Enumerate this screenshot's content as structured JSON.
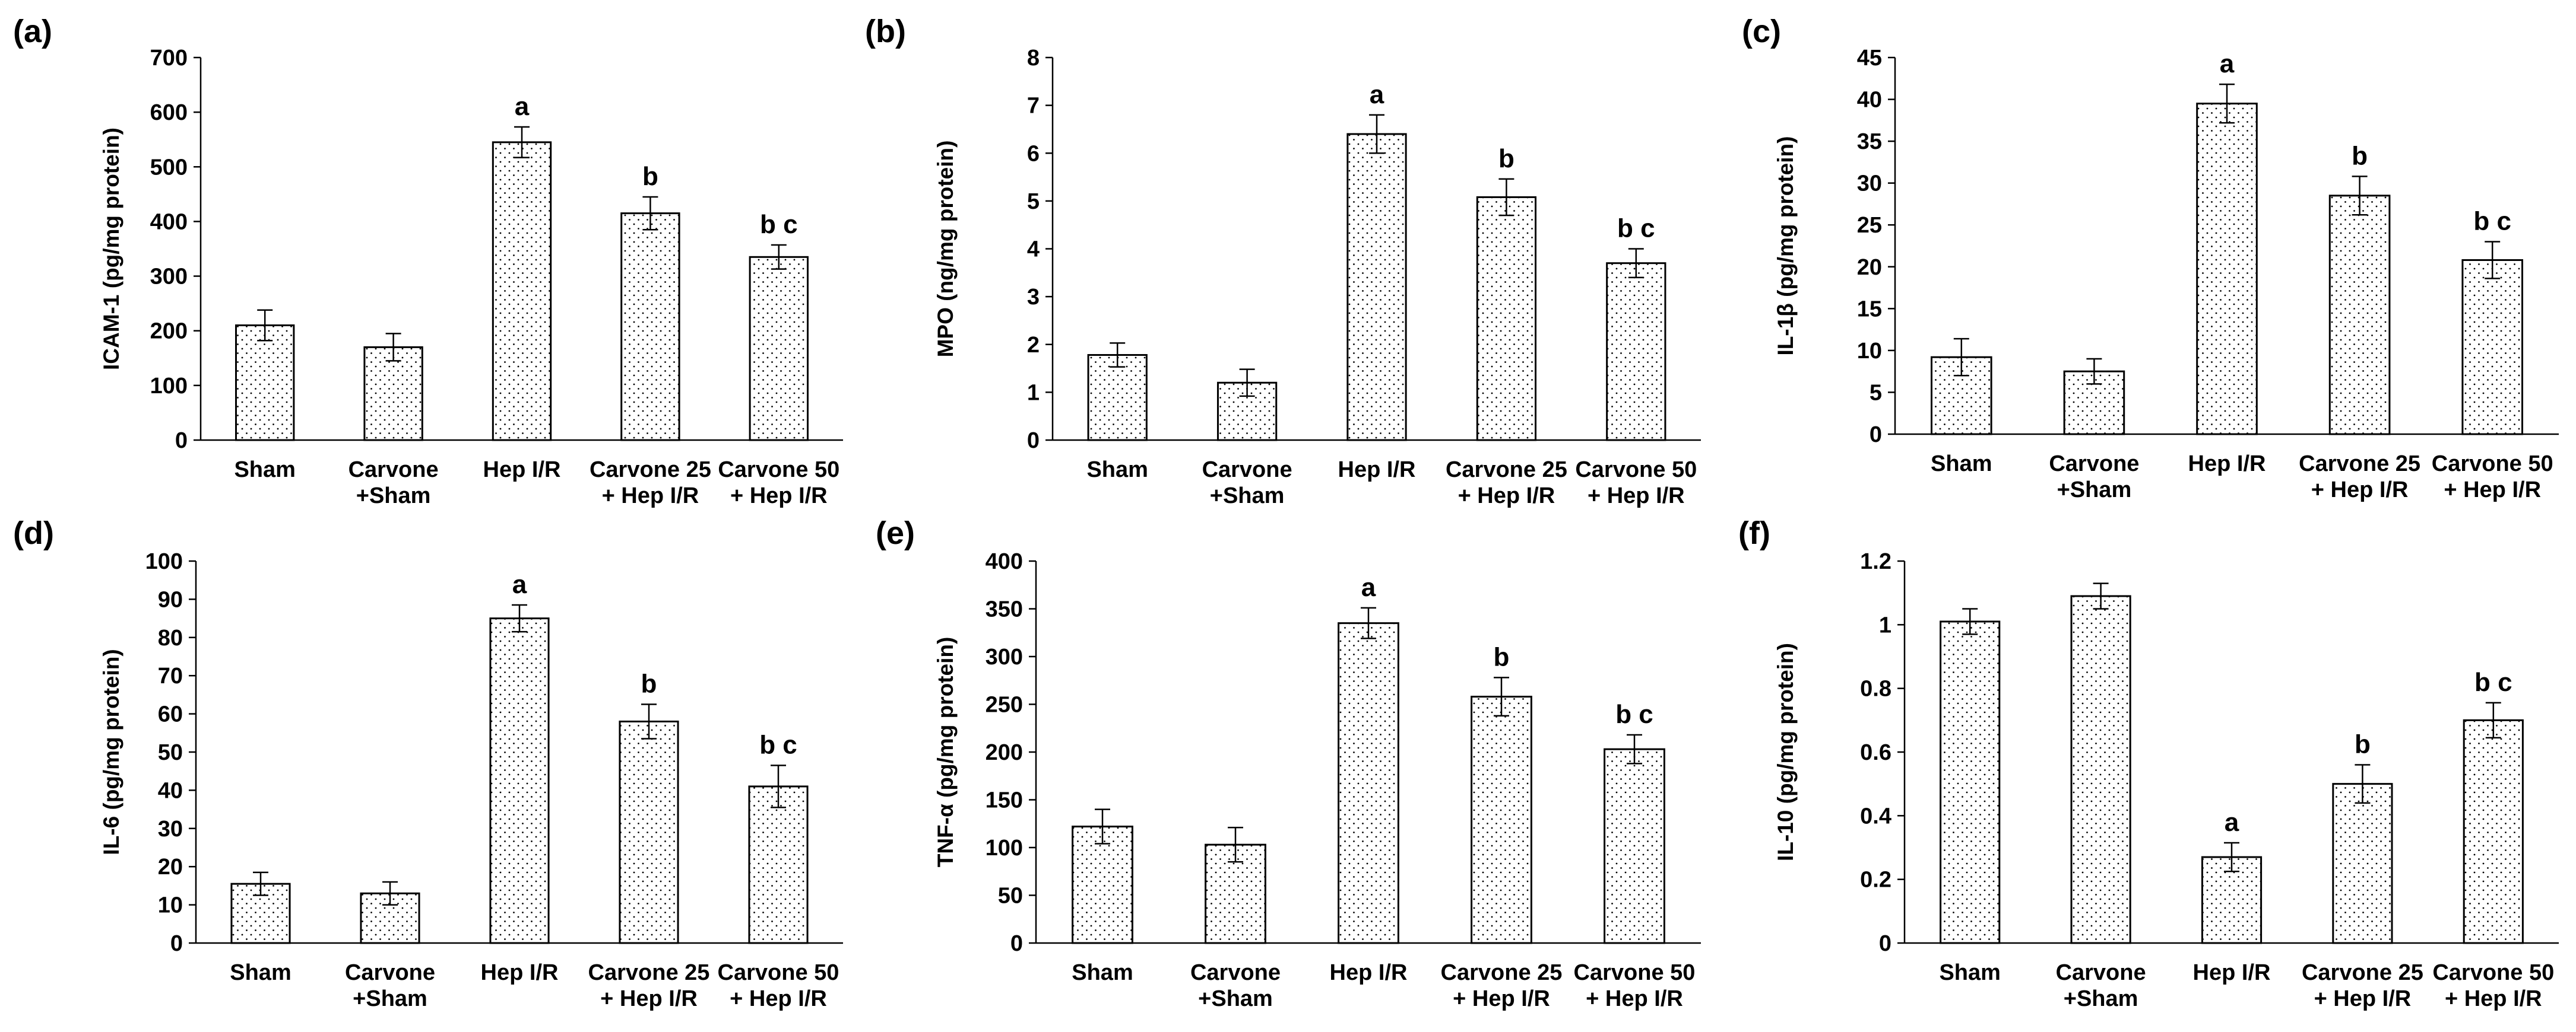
{
  "chart_data": [
    {
      "type": "bar",
      "panel_label": "(a)",
      "ylabel": "ICAM-1 (pg/mg protein)",
      "categories": [
        [
          "Sham"
        ],
        [
          "Carvone",
          "+Sham"
        ],
        [
          "Hep I/R"
        ],
        [
          "Carvone 25",
          "+ Hep I/R"
        ],
        [
          "Carvone 50",
          "+ Hep I/R"
        ]
      ],
      "values": [
        210,
        170,
        545,
        415,
        335
      ],
      "errors": [
        28,
        25,
        28,
        30,
        22
      ],
      "significance": [
        "",
        "",
        "a",
        "b",
        "b c"
      ],
      "ylim": [
        0,
        700
      ],
      "yticks": [
        "0",
        "100",
        "200",
        "300",
        "400",
        "500",
        "600",
        "700"
      ]
    },
    {
      "type": "bar",
      "panel_label": "(b)",
      "ylabel": "MPO (ng/mg protein)",
      "categories": [
        [
          "Sham"
        ],
        [
          "Carvone",
          "+Sham"
        ],
        [
          "Hep I/R"
        ],
        [
          "Carvone 25",
          "+ Hep I/R"
        ],
        [
          "Carvone 50",
          "+ Hep I/R"
        ]
      ],
      "values": [
        1.78,
        1.2,
        6.4,
        5.08,
        3.7
      ],
      "errors": [
        0.25,
        0.28,
        0.4,
        0.38,
        0.3
      ],
      "significance": [
        "",
        "",
        "a",
        "b",
        "b c"
      ],
      "ylim": [
        0,
        8
      ],
      "yticks": [
        "0",
        "1",
        "2",
        "3",
        "4",
        "5",
        "6",
        "7",
        "8"
      ]
    },
    {
      "type": "bar",
      "panel_label": "(c)",
      "ylabel": "IL-1β (pg/mg protein)",
      "categories": [
        [
          "Sham"
        ],
        [
          "Carvone",
          "+Sham"
        ],
        [
          "Hep I/R"
        ],
        [
          "Carvone 25",
          "+ Hep I/R"
        ],
        [
          "Carvone 50",
          "+ Hep I/R"
        ]
      ],
      "values": [
        9.2,
        7.5,
        39.5,
        28.5,
        20.8
      ],
      "errors": [
        2.2,
        1.5,
        2.3,
        2.3,
        2.2
      ],
      "significance": [
        "",
        "",
        "a",
        "b",
        "b c"
      ],
      "ylim": [
        0,
        45
      ],
      "yticks": [
        "0",
        "5",
        "10",
        "15",
        "20",
        "25",
        "30",
        "35",
        "40",
        "45"
      ]
    },
    {
      "type": "bar",
      "panel_label": "(d)",
      "ylabel": "IL-6 (pg/mg protein)",
      "categories": [
        [
          "Sham"
        ],
        [
          "Carvone",
          "+Sham"
        ],
        [
          "Hep I/R"
        ],
        [
          "Carvone 25",
          "+ Hep I/R"
        ],
        [
          "Carvone 50",
          "+ Hep I/R"
        ]
      ],
      "values": [
        15.5,
        13,
        85,
        58,
        41
      ],
      "errors": [
        3,
        3,
        3.5,
        4.5,
        5.5
      ],
      "significance": [
        "",
        "",
        "a",
        "b",
        "b c"
      ],
      "ylim": [
        0,
        100
      ],
      "yticks": [
        "0",
        "10",
        "20",
        "30",
        "40",
        "50",
        "60",
        "70",
        "80",
        "90",
        "100"
      ]
    },
    {
      "type": "bar",
      "panel_label": "(e)",
      "ylabel": "TNF-α (pg/mg protein)",
      "categories": [
        [
          "Sham"
        ],
        [
          "Carvone",
          "+Sham"
        ],
        [
          "Hep I/R"
        ],
        [
          "Carvone 25",
          "+ Hep I/R"
        ],
        [
          "Carvone 50",
          "+ Hep I/R"
        ]
      ],
      "values": [
        122,
        103,
        335,
        258,
        203
      ],
      "errors": [
        18,
        18,
        16,
        20,
        15
      ],
      "significance": [
        "",
        "",
        "a",
        "b",
        "b c"
      ],
      "ylim": [
        0,
        400
      ],
      "yticks": [
        "0",
        "50",
        "100",
        "150",
        "200",
        "250",
        "300",
        "350",
        "400"
      ]
    },
    {
      "type": "bar",
      "panel_label": "(f)",
      "ylabel": "IL-10 (pg/mg protein)",
      "categories": [
        [
          "Sham"
        ],
        [
          "Carvone",
          "+Sham"
        ],
        [
          "Hep I/R"
        ],
        [
          "Carvone 25",
          "+ Hep I/R"
        ],
        [
          "Carvone 50",
          "+ Hep I/R"
        ]
      ],
      "values": [
        1.01,
        1.09,
        0.27,
        0.5,
        0.7
      ],
      "errors": [
        0.04,
        0.04,
        0.045,
        0.06,
        0.055
      ],
      "significance": [
        "",
        "",
        "a",
        "b",
        "b c"
      ],
      "ylim": [
        0,
        1.2
      ],
      "yticks": [
        "0",
        "0.2",
        "0.4",
        "0.6",
        "0.8",
        "1",
        "1.2"
      ]
    }
  ]
}
